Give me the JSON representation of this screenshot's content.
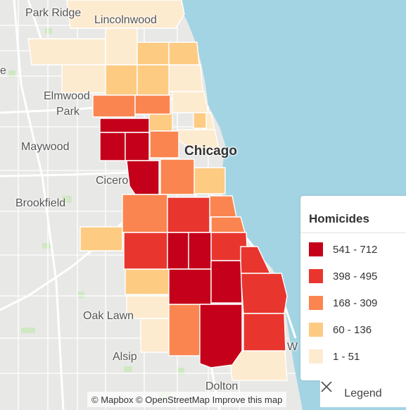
{
  "map": {
    "places": [
      {
        "id": "park-ridge",
        "label": "Park Ridge"
      },
      {
        "id": "lincolnwood",
        "label": "Lincolnwood"
      },
      {
        "id": "elmwood-park-1",
        "label": "Elmwood"
      },
      {
        "id": "elmwood-park-2",
        "label": "Park"
      },
      {
        "id": "maywood",
        "label": "Maywood"
      },
      {
        "id": "chicago",
        "label": "Chicago"
      },
      {
        "id": "cicero",
        "label": "Cicero"
      },
      {
        "id": "brookfield",
        "label": "Brookfield"
      },
      {
        "id": "oak-lawn",
        "label": "Oak Lawn"
      },
      {
        "id": "alsip",
        "label": "Alsip"
      },
      {
        "id": "dolton",
        "label": "Dolton"
      },
      {
        "id": "cut-left",
        "label": "e"
      },
      {
        "id": "cut-right",
        "label": "W"
      }
    ],
    "colors": {
      "land": "#e8e8e6",
      "water": "#a3d4e3",
      "road": "#ffffff",
      "park": "#cfe8c3"
    }
  },
  "legend": {
    "title": "Homicides",
    "classes": [
      {
        "range": "541 - 712",
        "color": "#c4001a"
      },
      {
        "range": "398 - 495",
        "color": "#e8362f"
      },
      {
        "range": "168 - 309",
        "color": "#fb8550"
      },
      {
        "range": "60 - 136",
        "color": "#fdcb82"
      },
      {
        "range": "1 - 51",
        "color": "#fdebd0"
      }
    ],
    "toggle_label": "Legend",
    "close_icon": "close-icon"
  },
  "attribution": {
    "text": "© Mapbox © OpenStreetMap Improve this map"
  }
}
